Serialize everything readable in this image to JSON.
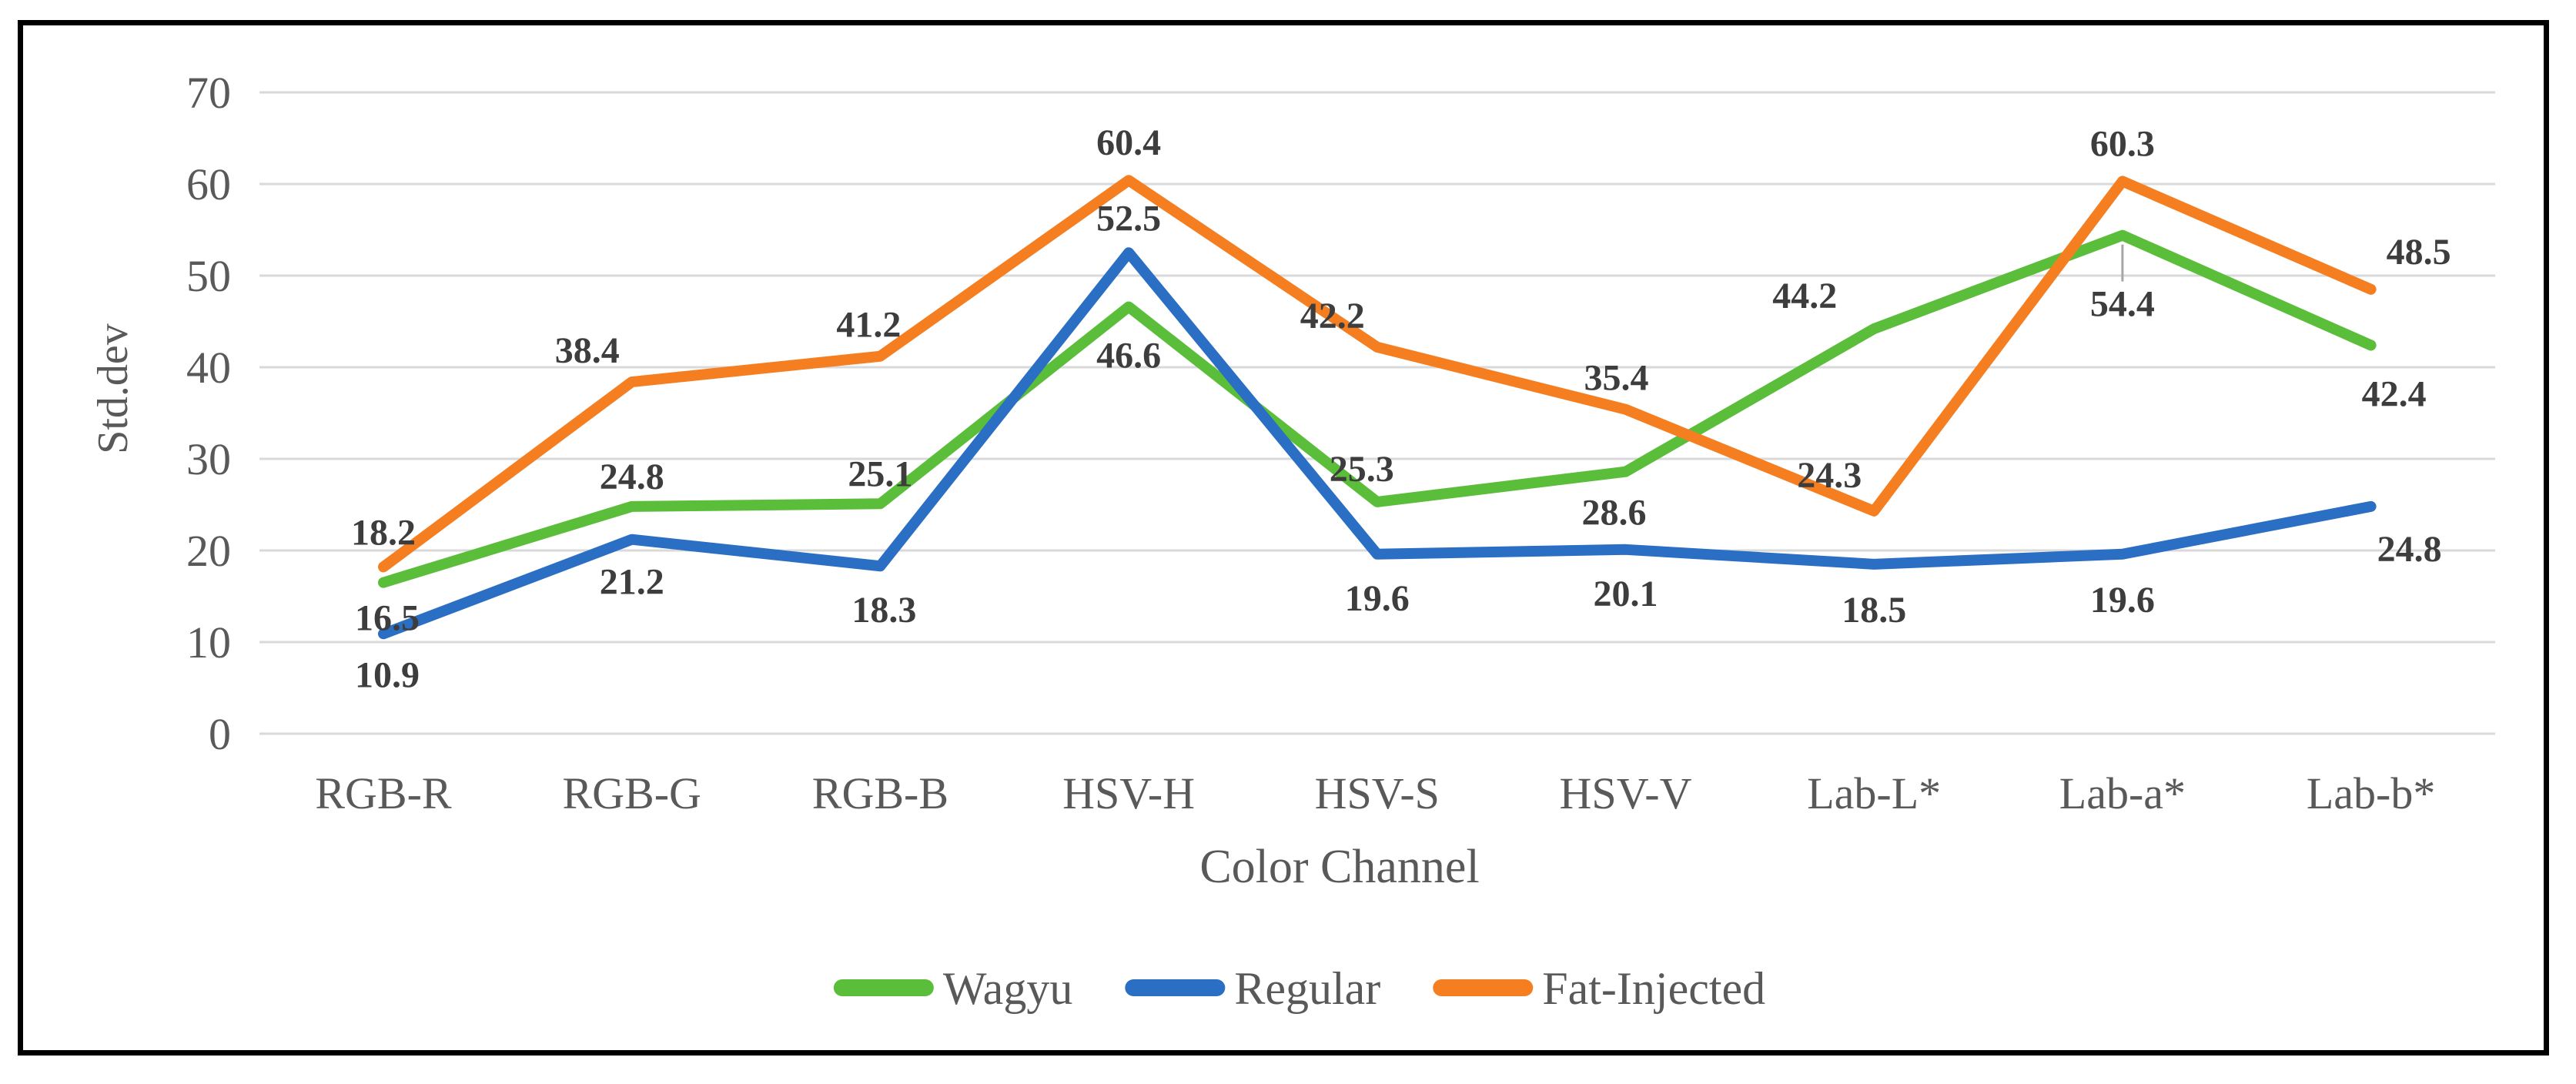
{
  "chart_data": {
    "type": "line",
    "title": "",
    "xlabel": "Color Channel",
    "ylabel": "Std.dev",
    "ylim": [
      0,
      70
    ],
    "ytick_step": 10,
    "yticks": [
      0,
      10,
      20,
      30,
      40,
      50,
      60,
      70
    ],
    "grid": "horizontal-only",
    "legend_position": "bottom",
    "categories": [
      "RGB-R",
      "RGB-G",
      "RGB-B",
      "HSV-H",
      "HSV-S",
      "HSV-V",
      "Lab-L*",
      "Lab-a*",
      "Lab-b*"
    ],
    "series": [
      {
        "name": "Wagyu",
        "color": "#5bbe3a",
        "values": [
          16.5,
          24.8,
          25.1,
          46.6,
          25.3,
          28.6,
          44.2,
          54.4,
          42.4
        ]
      },
      {
        "name": "Regular",
        "color": "#2a6fc4",
        "values": [
          10.9,
          21.2,
          18.3,
          52.5,
          19.6,
          20.1,
          18.5,
          19.6,
          24.8
        ]
      },
      {
        "name": "Fat-Injected",
        "color": "#f57e20",
        "values": [
          18.2,
          38.4,
          41.2,
          60.4,
          42.2,
          35.4,
          24.3,
          60.3,
          48.5
        ]
      }
    ],
    "colors": {
      "gridline": "#d9d9d9",
      "axis_text": "#595959",
      "data_label": "#3d3d3d",
      "frame_border": "#000000",
      "background": "#ffffff",
      "leader_line": "#a6a6a6"
    },
    "layout": {
      "label_offsets": [
        [
          [
            5,
            45
          ],
          [
            0,
            -40
          ],
          [
            0,
            -40
          ],
          [
            0,
            62
          ],
          [
            -20,
            -44
          ],
          [
            -15,
            52
          ],
          [
            -90,
            -44
          ],
          [
            0,
            88
          ],
          [
            30,
            62
          ]
        ],
        [
          [
            5,
            52
          ],
          [
            0,
            54
          ],
          [
            5,
            56
          ],
          [
            0,
            -46
          ],
          [
            0,
            56
          ],
          [
            0,
            56
          ],
          [
            0,
            58
          ],
          [
            0,
            58
          ],
          [
            50,
            54
          ]
        ],
        [
          [
            0,
            -46
          ],
          [
            -58,
            -42
          ],
          [
            -15,
            -42
          ],
          [
            0,
            -50
          ],
          [
            -58,
            -42
          ],
          [
            -12,
            -42
          ],
          [
            -58,
            -48
          ],
          [
            0,
            -50
          ],
          [
            62,
            -50
          ]
        ]
      ],
      "leader_lines": [
        {
          "series": 0,
          "point_index": 7
        }
      ]
    }
  }
}
